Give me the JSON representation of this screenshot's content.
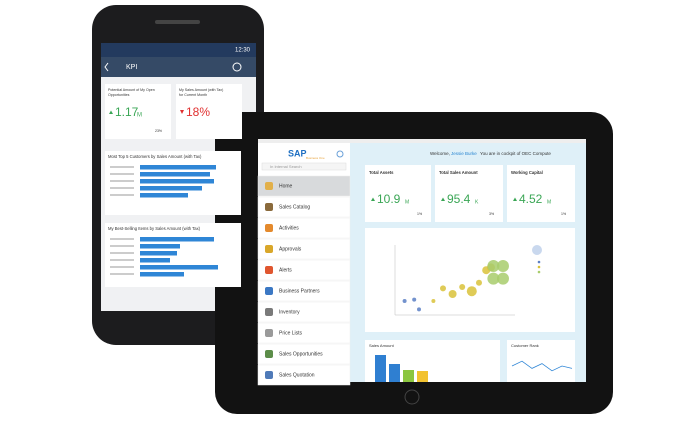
{
  "phone": {
    "status_time": "12:30",
    "header": "KPI",
    "kpis": [
      {
        "label1": "Potential Amount of My Open",
        "label2": "Opportunities",
        "value": "1.17",
        "unit": "M",
        "change": "23%"
      },
      {
        "label1": "My Sales Amount (with Tax)",
        "label2": "for Current Month",
        "value": "18%"
      }
    ],
    "charts": [
      {
        "title": "Most Top 5 Customers by Sales Amount (with Tax)",
        "values": [
          76,
          70,
          74,
          62,
          48
        ],
        "xlim": [
          0,
          80
        ]
      },
      {
        "title": "My Best-Selling Items by Sales Amount (with Tax)",
        "values": [
          74,
          40,
          37,
          30,
          78,
          44
        ],
        "xlim": [
          0,
          80
        ]
      }
    ]
  },
  "tablet": {
    "logo": "SAP",
    "logo_sub": "Business One",
    "search": "In Internal Search",
    "welcome": "Welcome,",
    "user": "Jessie Burke",
    "welcome_rest": "You are in cockpit of OEC Compute",
    "menu": [
      "Home",
      "Sales Catalog",
      "Activities",
      "Approvals",
      "Alerts",
      "Business Partners",
      "Inventory",
      "Price Lists",
      "Sales Opportunities",
      "Sales Quotation"
    ],
    "kpis": [
      {
        "label": "Total Assets",
        "value": "10.9",
        "unit": "M",
        "change": "1%"
      },
      {
        "label": "Total Sales Amount",
        "value": "95.4",
        "unit": "K",
        "change": "3%"
      },
      {
        "label": "Working Capital",
        "value": "4.52",
        "unit": "M",
        "change": "1%"
      }
    ],
    "scatter": {
      "xlim": [
        0,
        10
      ],
      "ylim": [
        0,
        10
      ],
      "series": [
        {
          "color": "#5b7fc4",
          "x": [
            0.8,
            1.6,
            2.0
          ],
          "y": [
            2.0,
            2.2,
            0.8
          ],
          "size": [
            2,
            2,
            2
          ]
        },
        {
          "color": "#d9c23a",
          "x": [
            3.2,
            4.0,
            4.8,
            5.6,
            6.4,
            7.0,
            7.6,
            8.0
          ],
          "y": [
            2.0,
            3.8,
            3.0,
            4.0,
            3.4,
            4.6,
            6.4,
            6.8
          ],
          "size": [
            2,
            3,
            4,
            3,
            5,
            3,
            4,
            4
          ]
        },
        {
          "color": "#a8cc6c",
          "x": [
            8.2,
            9.0,
            8.2,
            9.0
          ],
          "y": [
            7.0,
            7.0,
            5.2,
            5.2
          ],
          "size": [
            6,
            6,
            6,
            6
          ]
        }
      ]
    },
    "sales": {
      "title": "Sales Amount",
      "values": [
        27,
        18,
        12,
        11
      ],
      "colors": [
        "#2f7fd1",
        "#2f7fd1",
        "#8cc63f",
        "#f2c230"
      ],
      "ylim": [
        0,
        30
      ]
    },
    "customer_rank": {
      "title": "Customer Rank",
      "values": [
        5,
        7,
        4,
        6,
        3,
        5,
        4
      ],
      "ylim": [
        0,
        10
      ]
    }
  }
}
